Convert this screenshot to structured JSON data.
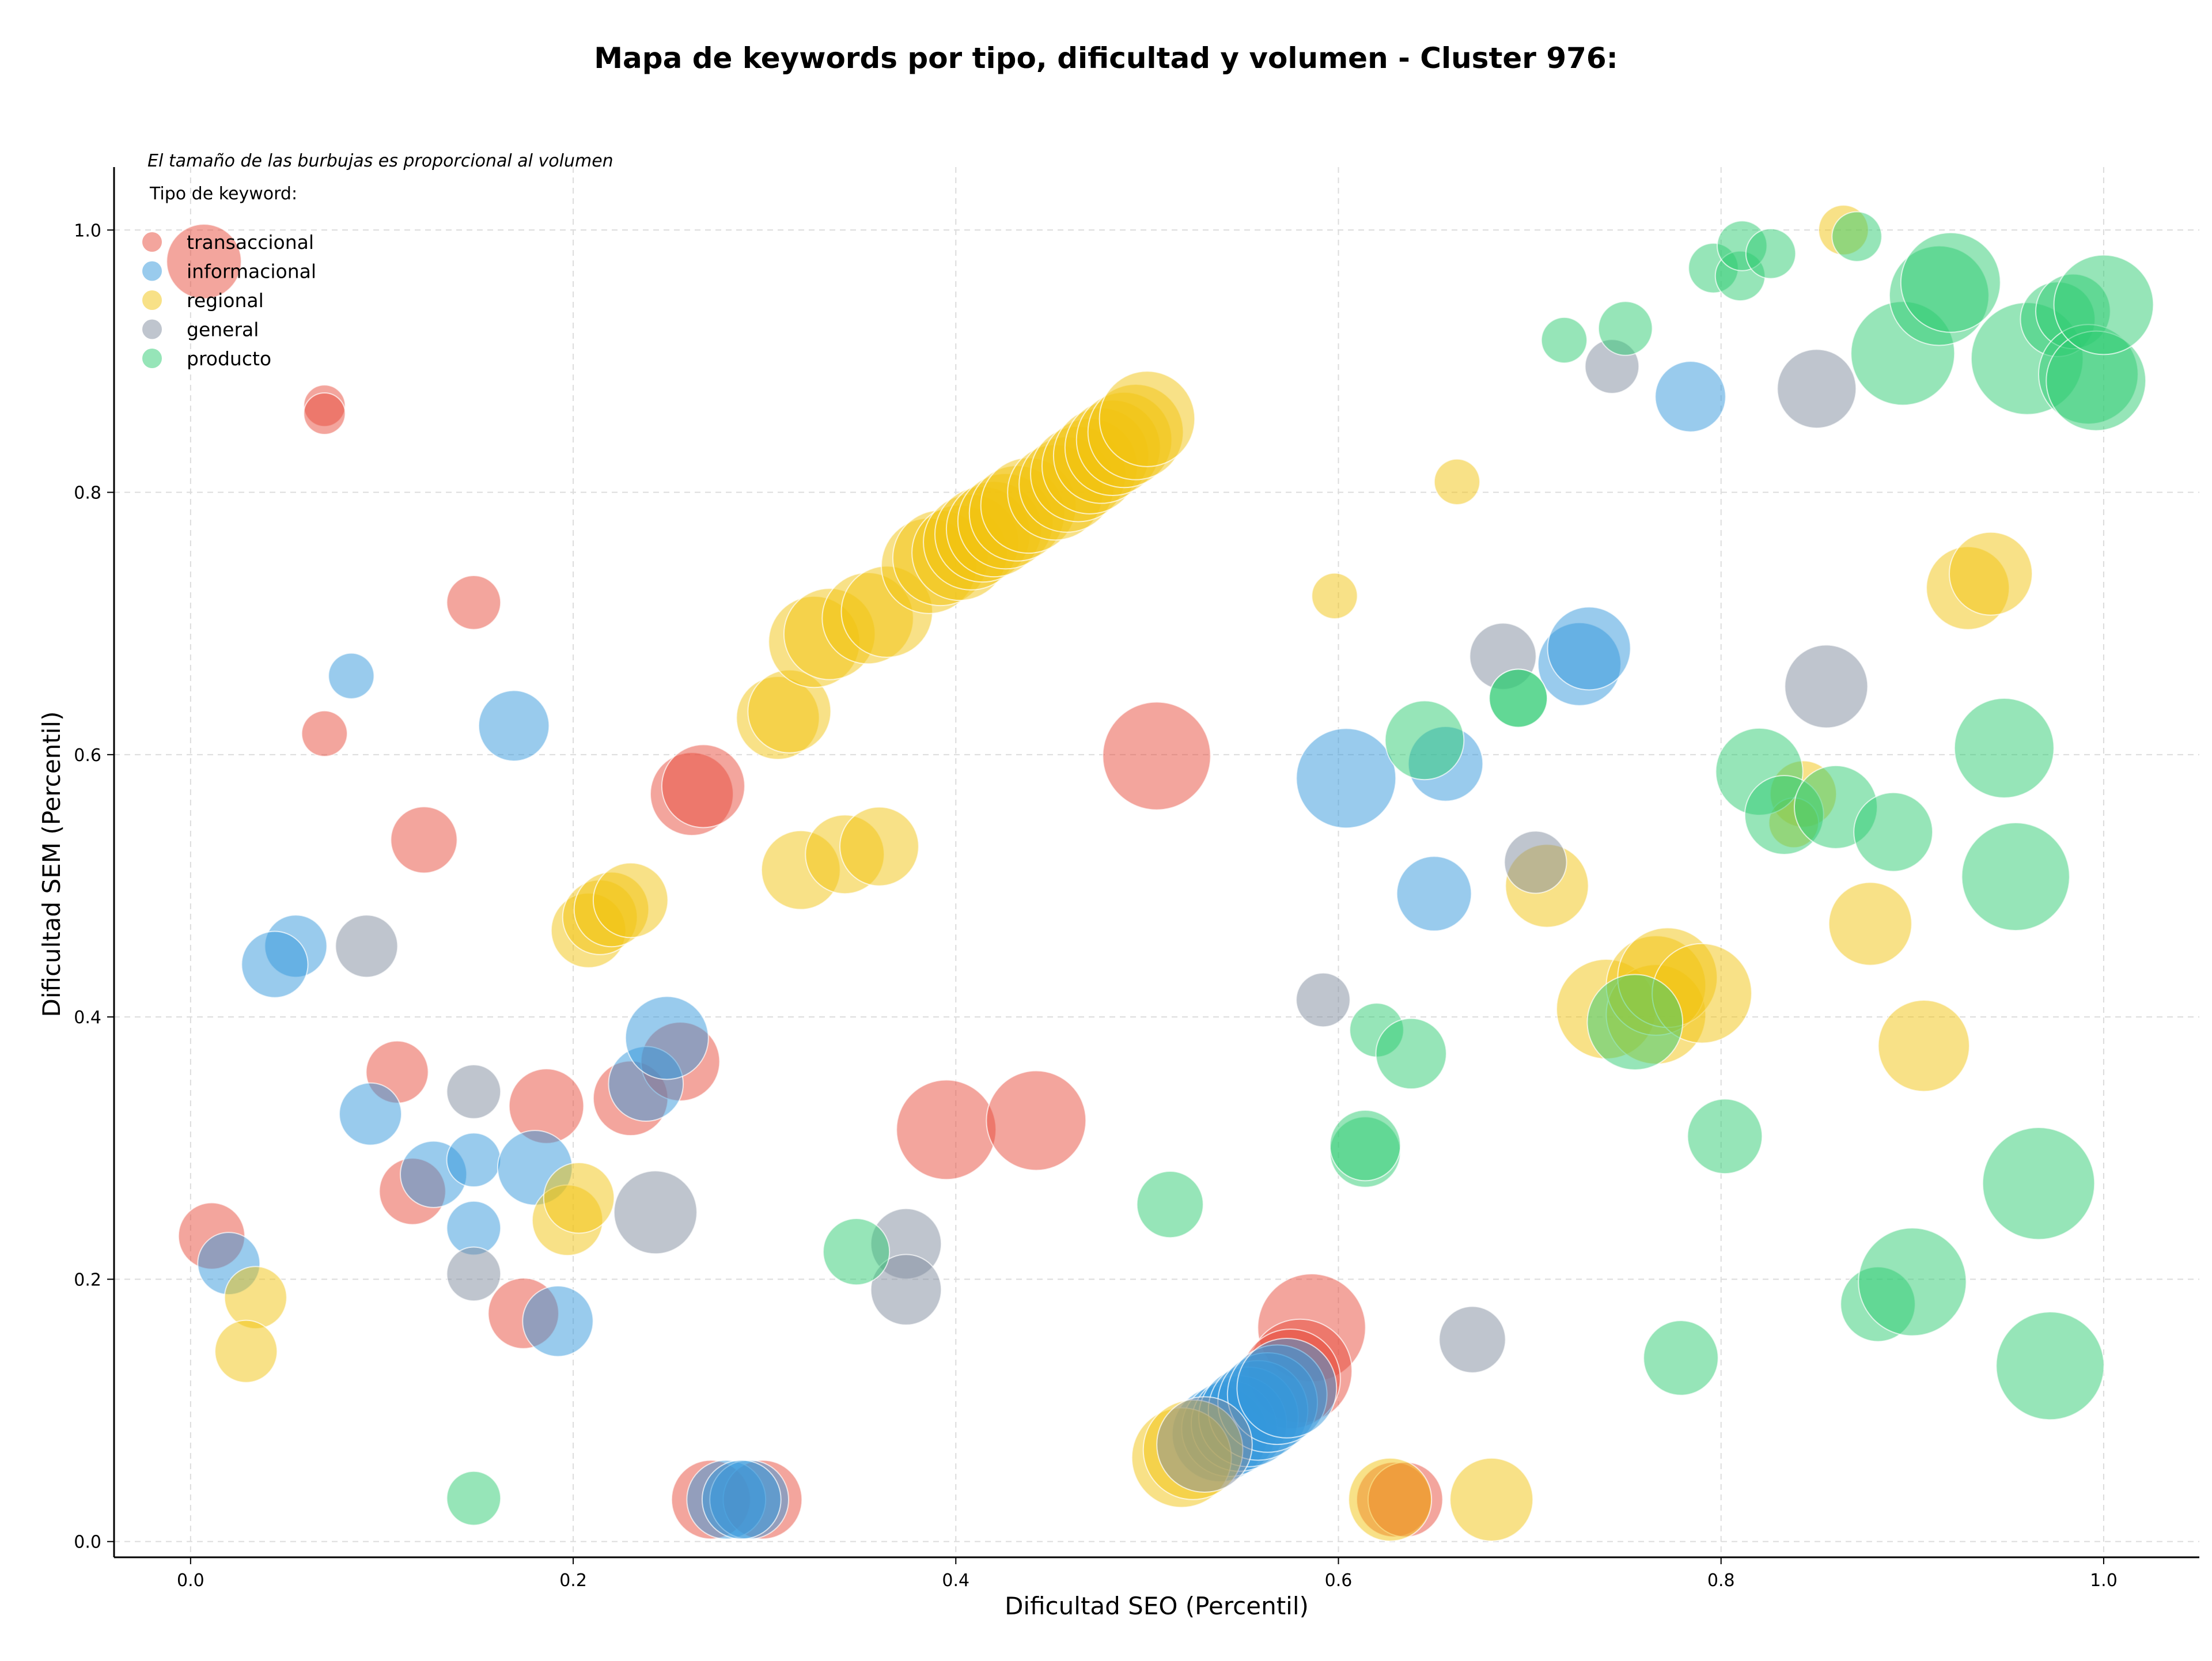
{
  "chart_data": {
    "type": "scatter",
    "title": "Mapa de keywords por tipo, dificultad y volumen - Cluster 976:",
    "xlabel": "Dificultad SEO (Percentil)",
    "ylabel": "Dificultad SEM (Percentil)",
    "xlim": [
      -0.04,
      1.05
    ],
    "ylim": [
      -0.012,
      1.048
    ],
    "xticks": [
      0.0,
      0.2,
      0.4,
      0.6,
      0.8,
      1.0
    ],
    "yticks": [
      0.0,
      0.2,
      0.4,
      0.6,
      0.8,
      1.0
    ],
    "xtick_labels": [
      "0.0",
      "0.2",
      "0.4",
      "0.6",
      "0.8",
      "1.0"
    ],
    "ytick_labels": [
      "0.0",
      "0.2",
      "0.4",
      "0.6",
      "0.8",
      "1.0"
    ],
    "grid": true,
    "size_note": "El tamaño de las burbujas es proporcional al volumen",
    "legend_title": "Tipo de keyword:",
    "legend_placement": "top-left",
    "series": [
      {
        "name": "transaccional",
        "color": "#e74c3c",
        "points": [
          [
            0.007,
            0.976,
            1.8
          ],
          [
            0.07,
            0.866,
            1.0
          ],
          [
            0.07,
            0.86,
            1.0
          ],
          [
            0.148,
            0.716,
            1.3
          ],
          [
            0.07,
            0.616,
            1.1
          ],
          [
            0.122,
            0.535,
            1.6
          ],
          [
            0.262,
            0.57,
            2.0
          ],
          [
            0.268,
            0.576,
            2.0
          ],
          [
            0.505,
            0.599,
            2.6
          ],
          [
            0.108,
            0.358,
            1.5
          ],
          [
            0.186,
            0.332,
            1.8
          ],
          [
            0.23,
            0.338,
            1.8
          ],
          [
            0.256,
            0.366,
            1.9
          ],
          [
            0.395,
            0.314,
            2.4
          ],
          [
            0.442,
            0.321,
            2.4
          ],
          [
            0.116,
            0.267,
            1.6
          ],
          [
            0.011,
            0.233,
            1.6
          ],
          [
            0.174,
            0.174,
            1.7
          ],
          [
            0.586,
            0.163,
            2.6
          ],
          [
            0.58,
            0.13,
            2.5
          ],
          [
            0.575,
            0.124,
            2.4
          ],
          [
            0.272,
            0.032,
            1.9
          ],
          [
            0.299,
            0.032,
            1.9
          ],
          [
            0.629,
            0.032,
            1.8
          ],
          [
            0.635,
            0.032,
            1.8
          ]
        ]
      },
      {
        "name": "informacional",
        "color": "#3498db",
        "points": [
          [
            0.084,
            0.66,
            1.1
          ],
          [
            0.169,
            0.622,
            1.7
          ],
          [
            0.055,
            0.454,
            1.5
          ],
          [
            0.044,
            0.44,
            1.6
          ],
          [
            0.094,
            0.326,
            1.5
          ],
          [
            0.127,
            0.28,
            1.6
          ],
          [
            0.148,
            0.291,
            1.3
          ],
          [
            0.18,
            0.285,
            1.8
          ],
          [
            0.148,
            0.239,
            1.3
          ],
          [
            0.02,
            0.212,
            1.5
          ],
          [
            0.192,
            0.168,
            1.7
          ],
          [
            0.238,
            0.349,
            1.8
          ],
          [
            0.249,
            0.384,
            2.0
          ],
          [
            0.604,
            0.582,
            2.4
          ],
          [
            0.656,
            0.593,
            1.8
          ],
          [
            0.65,
            0.494,
            1.8
          ],
          [
            0.726,
            0.669,
            2.0
          ],
          [
            0.731,
            0.681,
            2.0
          ],
          [
            0.784,
            0.873,
            1.7
          ],
          [
            0.538,
            0.082,
            2.3
          ],
          [
            0.543,
            0.086,
            2.3
          ],
          [
            0.548,
            0.09,
            2.3
          ],
          [
            0.553,
            0.095,
            2.4
          ],
          [
            0.558,
            0.1,
            2.4
          ],
          [
            0.563,
            0.106,
            2.4
          ],
          [
            0.568,
            0.112,
            2.4
          ],
          [
            0.573,
            0.117,
            2.4
          ],
          [
            0.28,
            0.032,
            1.9
          ],
          [
            0.292,
            0.032,
            1.9
          ],
          [
            0.288,
            0.032,
            1.9
          ]
        ]
      },
      {
        "name": "regional",
        "color": "#f1c40f",
        "points": [
          [
            0.307,
            0.628,
            2.0
          ],
          [
            0.313,
            0.633,
            2.0
          ],
          [
            0.326,
            0.686,
            2.2
          ],
          [
            0.334,
            0.692,
            2.2
          ],
          [
            0.354,
            0.704,
            2.2
          ],
          [
            0.364,
            0.709,
            2.2
          ],
          [
            0.386,
            0.744,
            2.3
          ],
          [
            0.392,
            0.75,
            2.3
          ],
          [
            0.402,
            0.754,
            2.3
          ],
          [
            0.408,
            0.762,
            2.3
          ],
          [
            0.414,
            0.768,
            2.3
          ],
          [
            0.42,
            0.772,
            2.3
          ],
          [
            0.426,
            0.778,
            2.3
          ],
          [
            0.432,
            0.784,
            2.3
          ],
          [
            0.438,
            0.79,
            2.3
          ],
          [
            0.452,
            0.8,
            2.3
          ],
          [
            0.458,
            0.806,
            2.3
          ],
          [
            0.464,
            0.814,
            2.3
          ],
          [
            0.47,
            0.82,
            2.3
          ],
          [
            0.476,
            0.828,
            2.3
          ],
          [
            0.482,
            0.834,
            2.3
          ],
          [
            0.488,
            0.84,
            2.3
          ],
          [
            0.494,
            0.846,
            2.3
          ],
          [
            0.5,
            0.856,
            2.3
          ],
          [
            0.319,
            0.512,
            1.9
          ],
          [
            0.342,
            0.524,
            1.9
          ],
          [
            0.36,
            0.53,
            1.9
          ],
          [
            0.208,
            0.466,
            1.8
          ],
          [
            0.214,
            0.476,
            1.8
          ],
          [
            0.22,
            0.482,
            1.8
          ],
          [
            0.23,
            0.489,
            1.8
          ],
          [
            0.197,
            0.245,
            1.7
          ],
          [
            0.203,
            0.262,
            1.7
          ],
          [
            0.034,
            0.186,
            1.5
          ],
          [
            0.029,
            0.145,
            1.5
          ],
          [
            0.598,
            0.721,
            1.1
          ],
          [
            0.662,
            0.808,
            1.1
          ],
          [
            0.864,
            1.0,
            1.2
          ],
          [
            0.709,
            0.5,
            2.0
          ],
          [
            0.74,
            0.406,
            2.4
          ],
          [
            0.766,
            0.402,
            2.4
          ],
          [
            0.766,
            0.424,
            2.4
          ],
          [
            0.772,
            0.43,
            2.4
          ],
          [
            0.79,
            0.418,
            2.4
          ],
          [
            0.843,
            0.57,
            1.6
          ],
          [
            0.838,
            0.548,
            1.2
          ],
          [
            0.878,
            0.471,
            2.0
          ],
          [
            0.906,
            0.378,
            2.2
          ],
          [
            0.929,
            0.727,
            2.0
          ],
          [
            0.941,
            0.738,
            2.0
          ],
          [
            0.518,
            0.064,
            2.4
          ],
          [
            0.524,
            0.07,
            2.4
          ],
          [
            0.627,
            0.032,
            2.0
          ],
          [
            0.68,
            0.032,
            2.0
          ]
        ]
      },
      {
        "name": "general",
        "color": "#7f8c9d",
        "points": [
          [
            0.092,
            0.454,
            1.5
          ],
          [
            0.148,
            0.343,
            1.3
          ],
          [
            0.148,
            0.204,
            1.3
          ],
          [
            0.243,
            0.251,
            2.0
          ],
          [
            0.374,
            0.227,
            1.7
          ],
          [
            0.374,
            0.192,
            1.7
          ],
          [
            0.592,
            0.413,
            1.3
          ],
          [
            0.67,
            0.154,
            1.6
          ],
          [
            0.686,
            0.675,
            1.6
          ],
          [
            0.703,
            0.518,
            1.5
          ],
          [
            0.743,
            0.896,
            1.3
          ],
          [
            0.85,
            0.879,
            1.9
          ],
          [
            0.855,
            0.652,
            2.0
          ],
          [
            0.53,
            0.074,
            2.3
          ]
        ]
      },
      {
        "name": "producto",
        "color": "#2ecc71",
        "points": [
          [
            0.148,
            0.033,
            1.3
          ],
          [
            0.348,
            0.221,
            1.6
          ],
          [
            0.512,
            0.257,
            1.6
          ],
          [
            0.614,
            0.297,
            1.7
          ],
          [
            0.614,
            0.302,
            1.7
          ],
          [
            0.62,
            0.39,
            1.3
          ],
          [
            0.638,
            0.372,
            1.7
          ],
          [
            0.645,
            0.611,
            1.9
          ],
          [
            0.694,
            0.643,
            1.4
          ],
          [
            0.694,
            0.643,
            1.4
          ],
          [
            0.718,
            0.916,
            1.1
          ],
          [
            0.75,
            0.925,
            1.3
          ],
          [
            0.755,
            0.396,
            2.3
          ],
          [
            0.779,
            0.14,
            1.8
          ],
          [
            0.796,
            0.971,
            1.2
          ],
          [
            0.802,
            0.309,
            1.8
          ],
          [
            0.81,
            0.965,
            1.2
          ],
          [
            0.811,
            0.988,
            1.2
          ],
          [
            0.826,
            0.982,
            1.2
          ],
          [
            0.82,
            0.587,
            2.1
          ],
          [
            0.833,
            0.554,
            1.9
          ],
          [
            0.86,
            0.56,
            2.0
          ],
          [
            0.871,
            0.995,
            1.2
          ],
          [
            0.882,
            0.181,
            1.8
          ],
          [
            0.89,
            0.541,
            1.9
          ],
          [
            0.895,
            0.906,
            2.5
          ],
          [
            0.9,
            0.198,
            2.6
          ],
          [
            0.914,
            0.95,
            2.4
          ],
          [
            0.92,
            0.96,
            2.4
          ],
          [
            0.948,
            0.605,
            2.4
          ],
          [
            0.954,
            0.507,
            2.6
          ],
          [
            0.96,
            0.902,
            2.7
          ],
          [
            0.966,
            0.273,
            2.7
          ],
          [
            0.972,
            0.134,
            2.6
          ],
          [
            0.976,
            0.932,
            1.8
          ],
          [
            0.984,
            0.938,
            1.8
          ],
          [
            0.992,
            0.89,
            2.4
          ],
          [
            0.996,
            0.885,
            2.4
          ],
          [
            1.0,
            0.943,
            2.4
          ]
        ]
      }
    ]
  }
}
